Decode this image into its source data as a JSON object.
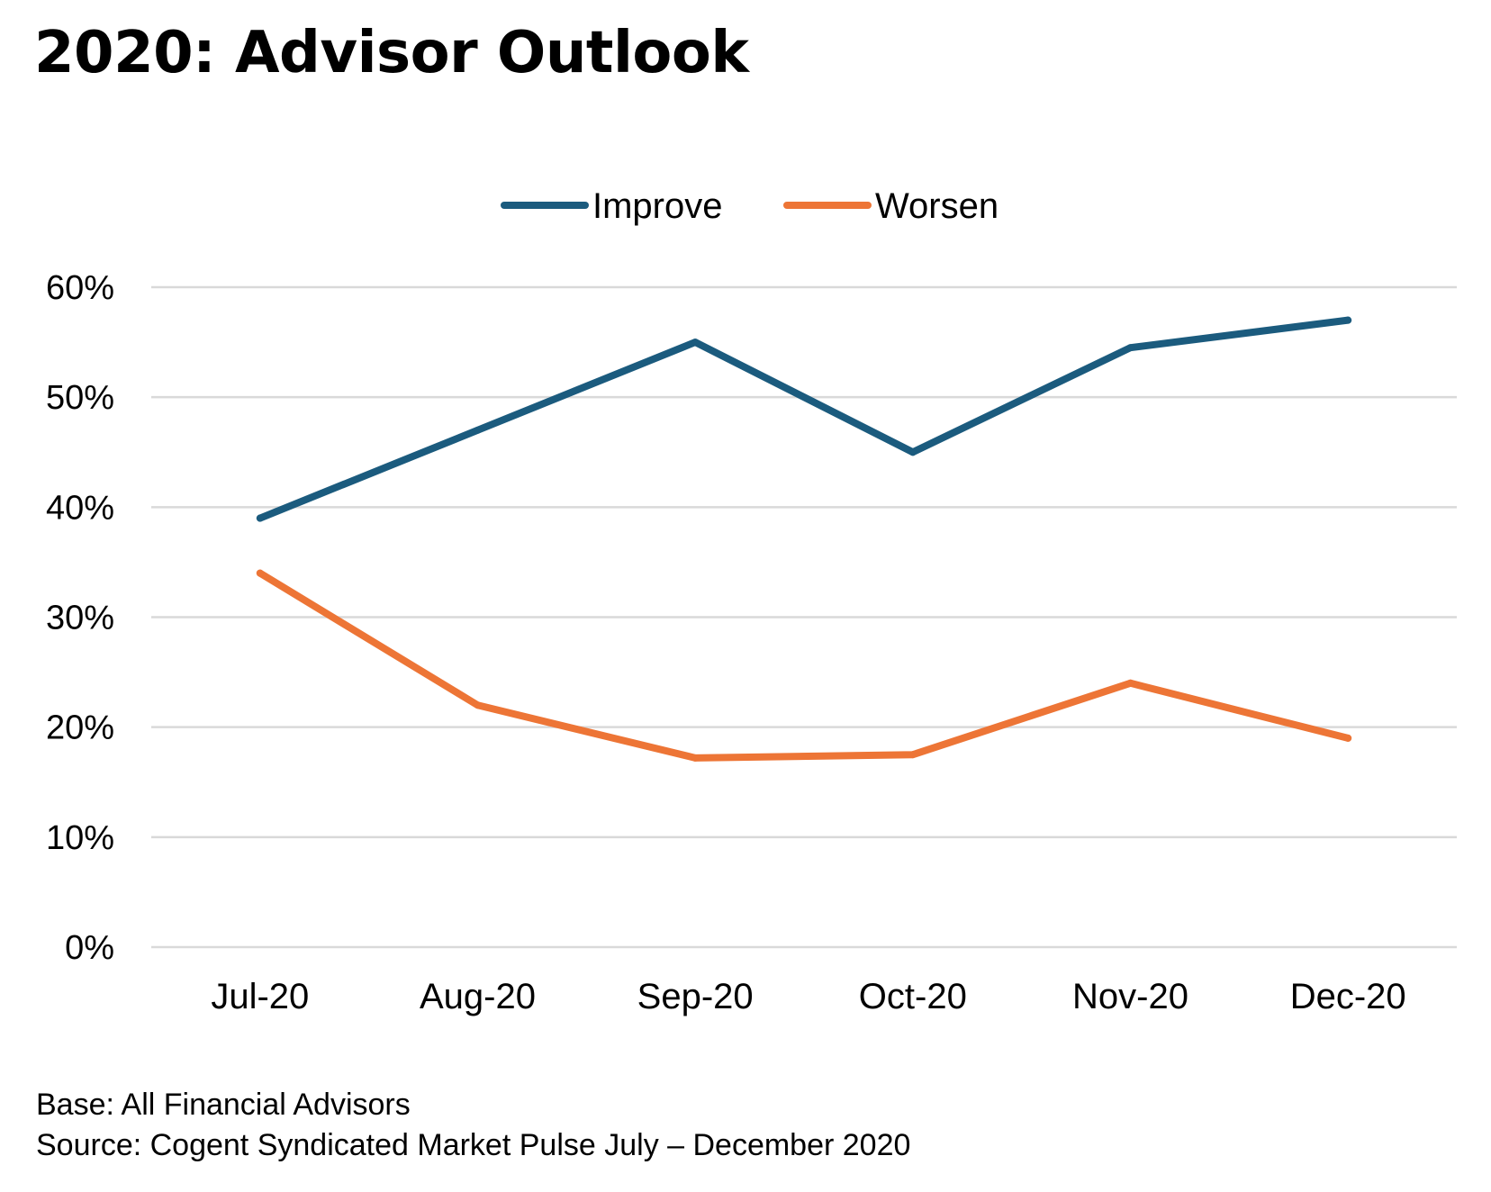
{
  "title": "2020: Advisor Outlook",
  "chart_data": {
    "type": "line",
    "title": "2020: Advisor Outlook",
    "xlabel": "",
    "ylabel": "",
    "categories": [
      "Jul-20",
      "Aug-20",
      "Sep-20",
      "Oct-20",
      "Nov-20",
      "Dec-20"
    ],
    "series": [
      {
        "name": "Improve",
        "color": "#1b5b7e",
        "values": [
          39,
          47,
          55,
          45,
          54.5,
          57
        ]
      },
      {
        "name": "Worsen",
        "color": "#ed7536",
        "values": [
          34,
          22,
          17.2,
          17.5,
          24,
          19
        ]
      }
    ],
    "ylim": [
      0,
      60
    ],
    "yticks": [
      0,
      10,
      20,
      30,
      40,
      50,
      60
    ],
    "ytick_labels": [
      "0%",
      "10%",
      "20%",
      "30%",
      "40%",
      "50%",
      "60%"
    ],
    "grid": true,
    "legend": "top-center",
    "gridline_color": "#d9d9d9"
  },
  "notes": {
    "base": "Base: All Financial Advisors",
    "source": "Source: Cogent Syndicated Market Pulse July – December 2020"
  }
}
